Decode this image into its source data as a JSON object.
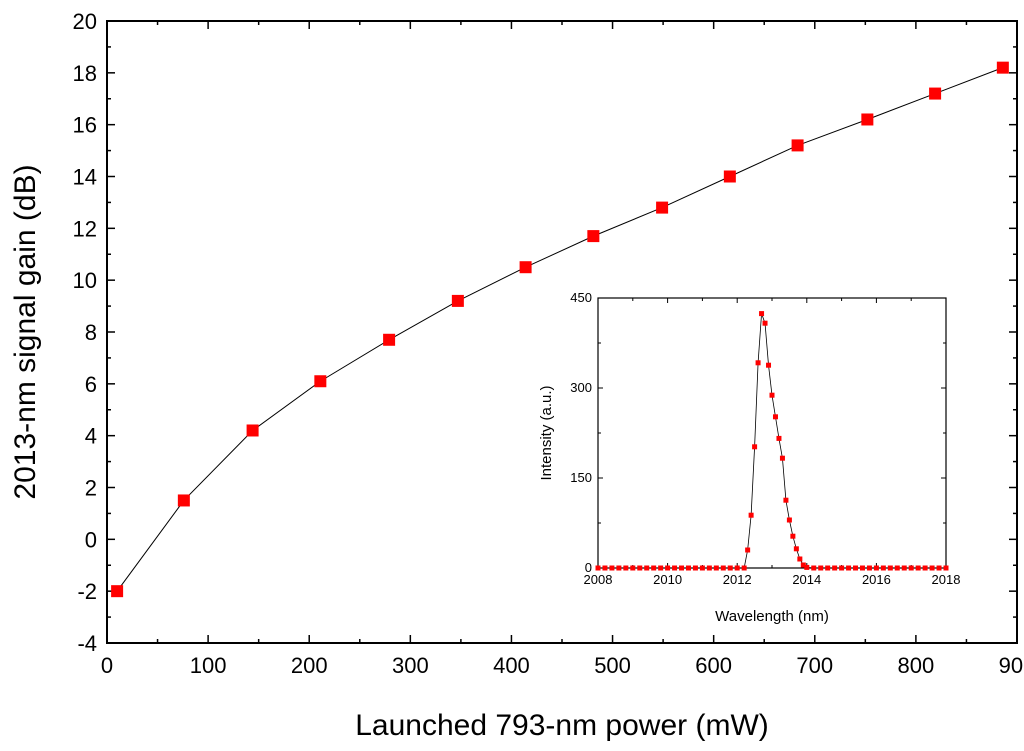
{
  "chart_data": [
    {
      "type": "line",
      "role": "main",
      "xlabel": "Launched 793-nm power (mW)",
      "ylabel": "2013-nm signal gain (dB)",
      "xlim": [
        0,
        900
      ],
      "ylim": [
        -4,
        20
      ],
      "xticks": [
        0,
        100,
        200,
        300,
        400,
        500,
        600,
        700,
        800,
        900
      ],
      "yticks": [
        -4,
        -2,
        0,
        2,
        4,
        6,
        8,
        10,
        12,
        14,
        16,
        18,
        20
      ],
      "grid": false,
      "marker": "square",
      "series": [
        {
          "color": "#ff0000",
          "line_color": "#000000",
          "x": [
            10,
            76,
            144,
            211,
            279,
            347,
            414,
            481,
            549,
            616,
            683,
            752,
            819,
            886
          ],
          "y": [
            -2.0,
            1.5,
            4.2,
            6.1,
            7.7,
            9.2,
            10.5,
            11.7,
            12.8,
            14.0,
            15.2,
            16.2,
            17.2,
            18.2
          ]
        }
      ]
    },
    {
      "type": "line",
      "role": "inset",
      "xlabel": "Wavelength (nm)",
      "ylabel": "Intensity (a.u.)",
      "xlim": [
        2008,
        2018
      ],
      "ylim": [
        0,
        450
      ],
      "xticks": [
        2008,
        2010,
        2012,
        2014,
        2016,
        2018
      ],
      "yticks": [
        0,
        150,
        300,
        450
      ],
      "grid": false,
      "marker": "square",
      "series": [
        {
          "color": "#ff0000",
          "line_color": "#000000",
          "x": [
            2008.0,
            2008.2,
            2008.4,
            2008.6,
            2008.8,
            2009.0,
            2009.2,
            2009.4,
            2009.6,
            2009.8,
            2010.0,
            2010.2,
            2010.4,
            2010.6,
            2010.8,
            2011.0,
            2011.2,
            2011.4,
            2011.6,
            2011.8,
            2012.0,
            2012.2,
            2012.3,
            2012.4,
            2012.5,
            2012.6,
            2012.7,
            2012.8,
            2012.9,
            2013.0,
            2013.1,
            2013.2,
            2013.3,
            2013.4,
            2013.5,
            2013.6,
            2013.7,
            2013.8,
            2013.9,
            2014.0,
            2014.2,
            2014.4,
            2014.6,
            2014.8,
            2015.0,
            2015.2,
            2015.4,
            2015.6,
            2015.8,
            2016.0,
            2016.2,
            2016.4,
            2016.6,
            2016.8,
            2017.0,
            2017.2,
            2017.4,
            2017.6,
            2017.8,
            2018.0
          ],
          "y": [
            0,
            0,
            0,
            0,
            0,
            0,
            0,
            0,
            0,
            0,
            0,
            0,
            0,
            0,
            0,
            0,
            0,
            0,
            0,
            0,
            0,
            0,
            30,
            88,
            202,
            342,
            424,
            408,
            338,
            288,
            252,
            216,
            183,
            113,
            80,
            53,
            32,
            15,
            5,
            1,
            0,
            0,
            0,
            0,
            0,
            0,
            0,
            0,
            0,
            0,
            0,
            0,
            0,
            0,
            0,
            0,
            0,
            0,
            0,
            0
          ]
        }
      ]
    }
  ]
}
